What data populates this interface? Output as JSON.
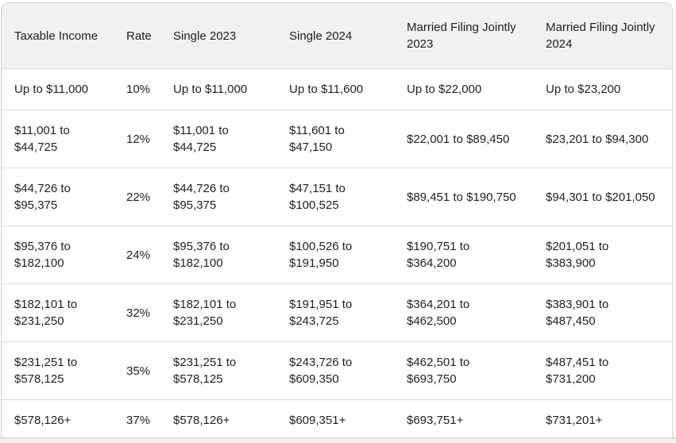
{
  "colors": {
    "header_bg": "#f1f1f1",
    "row_bg": "#ffffff",
    "outer_border": "#d2d2d2",
    "row_divider": "#dbdbdb",
    "text": "#1f1f1f",
    "bottom_strip_bg": "#f1f1f1",
    "bottom_strip_border": "#c9c9c9"
  },
  "table": {
    "columns": [
      "Taxable Income",
      "Rate",
      "Single 2023",
      "Single 2024",
      "Married Filing Jointly\n2023",
      "Married Filing Jointly\n2024"
    ],
    "rows": [
      [
        "Up to $11,000",
        "10%",
        "Up to $11,000",
        "Up to $11,600",
        "Up to $22,000",
        "Up to $23,200"
      ],
      [
        "$11,001 to\n$44,725",
        "12%",
        "$11,001 to\n$44,725",
        "$11,601 to $47,150",
        "$22,001 to $89,450",
        "$23,201 to $94,300"
      ],
      [
        "$44,726 to\n$95,375",
        "22%",
        "$44,726 to\n$95,375",
        "$47,151 to\n$100,525",
        "$89,451 to $190,750",
        "$94,301 to $201,050"
      ],
      [
        "$95,376 to\n$182,100",
        "24%",
        "$95,376 to\n$182,100",
        "$100,526 to\n$191,950",
        "$190,751 to $364,200",
        "$201,051 to $383,900"
      ],
      [
        "$182,101 to\n$231,250",
        "32%",
        "$182,101 to\n$231,250",
        "$191,951 to\n$243,725",
        "$364,201 to $462,500",
        "$383,901 to $487,450"
      ],
      [
        "$231,251 to\n$578,125",
        "35%",
        "$231,251 to\n$578,125",
        "$243,726 to\n$609,350",
        "$462,501 to $693,750",
        "$487,451 to $731,200"
      ],
      [
        "$578,126+",
        "37%",
        "$578,126+",
        "$609,351+",
        "$693,751+",
        "$731,201+"
      ]
    ]
  }
}
